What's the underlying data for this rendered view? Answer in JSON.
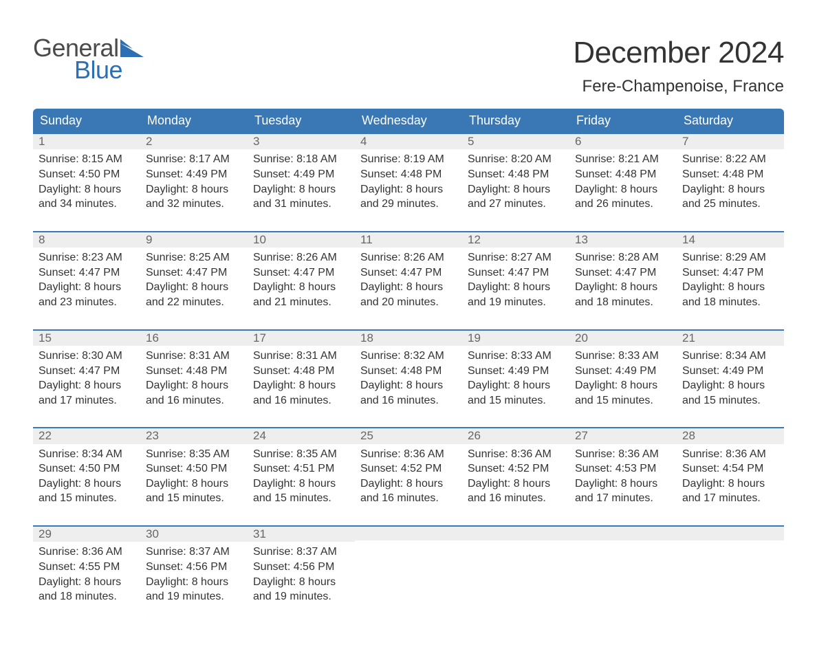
{
  "brand": {
    "word1": "General",
    "word2": "Blue",
    "accent_color": "#2d6fb4",
    "text_color": "#4a4a4a"
  },
  "title": "December 2024",
  "location": "Fere-Champenoise, France",
  "header_bg": "#3a77b5",
  "header_text_color": "#ffffff",
  "datebar_bg": "#eeeeee",
  "datebar_text": "#666666",
  "cell_border_color": "#3a77b5",
  "body_text_color": "#333333",
  "page_bg": "#ffffff",
  "day_names": [
    "Sunday",
    "Monday",
    "Tuesday",
    "Wednesday",
    "Thursday",
    "Friday",
    "Saturday"
  ],
  "weeks": [
    [
      {
        "date": "1",
        "sunrise": "8:15 AM",
        "sunset": "4:50 PM",
        "daylight": "8 hours and 34 minutes."
      },
      {
        "date": "2",
        "sunrise": "8:17 AM",
        "sunset": "4:49 PM",
        "daylight": "8 hours and 32 minutes."
      },
      {
        "date": "3",
        "sunrise": "8:18 AM",
        "sunset": "4:49 PM",
        "daylight": "8 hours and 31 minutes."
      },
      {
        "date": "4",
        "sunrise": "8:19 AM",
        "sunset": "4:48 PM",
        "daylight": "8 hours and 29 minutes."
      },
      {
        "date": "5",
        "sunrise": "8:20 AM",
        "sunset": "4:48 PM",
        "daylight": "8 hours and 27 minutes."
      },
      {
        "date": "6",
        "sunrise": "8:21 AM",
        "sunset": "4:48 PM",
        "daylight": "8 hours and 26 minutes."
      },
      {
        "date": "7",
        "sunrise": "8:22 AM",
        "sunset": "4:48 PM",
        "daylight": "8 hours and 25 minutes."
      }
    ],
    [
      {
        "date": "8",
        "sunrise": "8:23 AM",
        "sunset": "4:47 PM",
        "daylight": "8 hours and 23 minutes."
      },
      {
        "date": "9",
        "sunrise": "8:25 AM",
        "sunset": "4:47 PM",
        "daylight": "8 hours and 22 minutes."
      },
      {
        "date": "10",
        "sunrise": "8:26 AM",
        "sunset": "4:47 PM",
        "daylight": "8 hours and 21 minutes."
      },
      {
        "date": "11",
        "sunrise": "8:26 AM",
        "sunset": "4:47 PM",
        "daylight": "8 hours and 20 minutes."
      },
      {
        "date": "12",
        "sunrise": "8:27 AM",
        "sunset": "4:47 PM",
        "daylight": "8 hours and 19 minutes."
      },
      {
        "date": "13",
        "sunrise": "8:28 AM",
        "sunset": "4:47 PM",
        "daylight": "8 hours and 18 minutes."
      },
      {
        "date": "14",
        "sunrise": "8:29 AM",
        "sunset": "4:47 PM",
        "daylight": "8 hours and 18 minutes."
      }
    ],
    [
      {
        "date": "15",
        "sunrise": "8:30 AM",
        "sunset": "4:47 PM",
        "daylight": "8 hours and 17 minutes."
      },
      {
        "date": "16",
        "sunrise": "8:31 AM",
        "sunset": "4:48 PM",
        "daylight": "8 hours and 16 minutes."
      },
      {
        "date": "17",
        "sunrise": "8:31 AM",
        "sunset": "4:48 PM",
        "daylight": "8 hours and 16 minutes."
      },
      {
        "date": "18",
        "sunrise": "8:32 AM",
        "sunset": "4:48 PM",
        "daylight": "8 hours and 16 minutes."
      },
      {
        "date": "19",
        "sunrise": "8:33 AM",
        "sunset": "4:49 PM",
        "daylight": "8 hours and 15 minutes."
      },
      {
        "date": "20",
        "sunrise": "8:33 AM",
        "sunset": "4:49 PM",
        "daylight": "8 hours and 15 minutes."
      },
      {
        "date": "21",
        "sunrise": "8:34 AM",
        "sunset": "4:49 PM",
        "daylight": "8 hours and 15 minutes."
      }
    ],
    [
      {
        "date": "22",
        "sunrise": "8:34 AM",
        "sunset": "4:50 PM",
        "daylight": "8 hours and 15 minutes."
      },
      {
        "date": "23",
        "sunrise": "8:35 AM",
        "sunset": "4:50 PM",
        "daylight": "8 hours and 15 minutes."
      },
      {
        "date": "24",
        "sunrise": "8:35 AM",
        "sunset": "4:51 PM",
        "daylight": "8 hours and 15 minutes."
      },
      {
        "date": "25",
        "sunrise": "8:36 AM",
        "sunset": "4:52 PM",
        "daylight": "8 hours and 16 minutes."
      },
      {
        "date": "26",
        "sunrise": "8:36 AM",
        "sunset": "4:52 PM",
        "daylight": "8 hours and 16 minutes."
      },
      {
        "date": "27",
        "sunrise": "8:36 AM",
        "sunset": "4:53 PM",
        "daylight": "8 hours and 17 minutes."
      },
      {
        "date": "28",
        "sunrise": "8:36 AM",
        "sunset": "4:54 PM",
        "daylight": "8 hours and 17 minutes."
      }
    ],
    [
      {
        "date": "29",
        "sunrise": "8:36 AM",
        "sunset": "4:55 PM",
        "daylight": "8 hours and 18 minutes."
      },
      {
        "date": "30",
        "sunrise": "8:37 AM",
        "sunset": "4:56 PM",
        "daylight": "8 hours and 19 minutes."
      },
      {
        "date": "31",
        "sunrise": "8:37 AM",
        "sunset": "4:56 PM",
        "daylight": "8 hours and 19 minutes."
      },
      null,
      null,
      null,
      null
    ]
  ],
  "labels": {
    "sunrise": "Sunrise:",
    "sunset": "Sunset:",
    "daylight": "Daylight:"
  }
}
